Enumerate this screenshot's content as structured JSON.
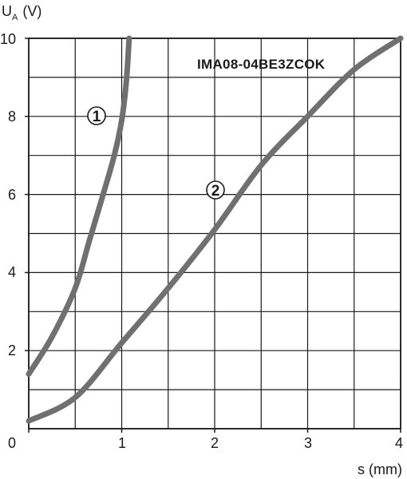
{
  "chart_data": {
    "type": "line",
    "title": "",
    "ylabel_main": "U",
    "ylabel_sub": "A",
    "ylabel_unit": "(V)",
    "xlabel": "s (mm)",
    "xlim": [
      0,
      4
    ],
    "ylim": [
      0,
      10
    ],
    "x_ticks": [
      "0",
      "1",
      "2",
      "3",
      "4"
    ],
    "y_ticks": [
      "2",
      "4",
      "6",
      "8",
      "10"
    ],
    "x_tick_values": [
      0,
      1,
      2,
      3,
      4
    ],
    "y_tick_values": [
      2,
      4,
      6,
      8,
      10
    ],
    "grid": true,
    "grid_step_x": 0.5,
    "grid_step_y": 1,
    "annotation": "IMA08-04BE3ZCOK",
    "series": [
      {
        "label": "1",
        "color": "#707070",
        "points": [
          [
            0.0,
            1.4
          ],
          [
            0.25,
            2.35
          ],
          [
            0.5,
            3.6
          ],
          [
            0.65,
            4.8
          ],
          [
            0.8,
            6.0
          ],
          [
            0.92,
            7.0
          ],
          [
            1.0,
            7.9
          ],
          [
            1.05,
            8.9
          ],
          [
            1.08,
            10.0
          ]
        ]
      },
      {
        "label": "2",
        "color": "#707070",
        "points": [
          [
            0.0,
            0.2
          ],
          [
            0.5,
            0.8
          ],
          [
            1.0,
            2.2
          ],
          [
            1.5,
            3.6
          ],
          [
            2.0,
            5.1
          ],
          [
            2.5,
            6.75
          ],
          [
            3.0,
            8.0
          ],
          [
            3.5,
            9.2
          ],
          [
            4.0,
            10.0
          ]
        ]
      }
    ]
  }
}
